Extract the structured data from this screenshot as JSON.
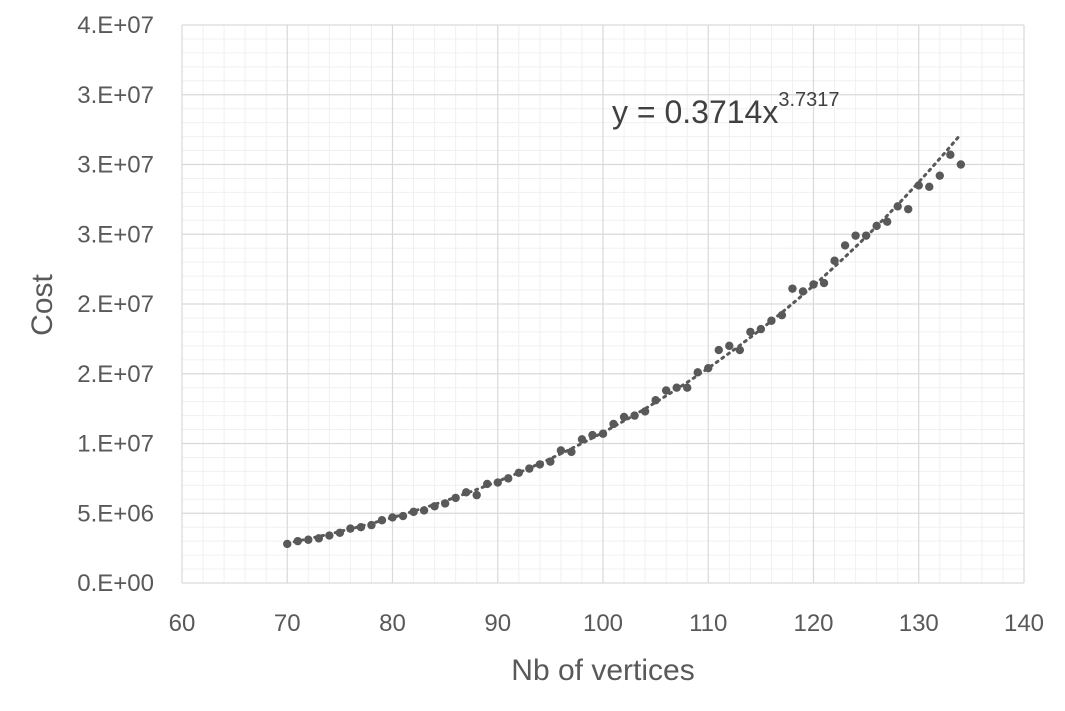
{
  "chart_data": {
    "type": "scatter",
    "title": "",
    "xlabel": "Nb of vertices",
    "ylabel": "Cost",
    "xlim": [
      60,
      140
    ],
    "ylim": [
      0,
      40000000
    ],
    "x_ticks": [
      60,
      70,
      80,
      90,
      100,
      110,
      120,
      130,
      140
    ],
    "y_ticks": [
      0,
      5000000,
      10000000,
      15000000,
      20000000,
      25000000,
      30000000,
      35000000,
      40000000
    ],
    "x_tick_labels": [
      "60",
      "70",
      "80",
      "90",
      "100",
      "110",
      "120",
      "130",
      "140"
    ],
    "y_tick_labels": [
      "0.E+00",
      "5.E+06",
      "1.E+07",
      "2.E+07",
      "2.E+07",
      "3.E+07",
      "3.E+07",
      "3.E+07",
      "4.E+07"
    ],
    "grid": true,
    "minor_grid": true,
    "legend": "none",
    "colors": {
      "points": "#595959",
      "trendline": "#595959",
      "major_grid": "#d9d9d9",
      "minor_grid": "#f0f0f0",
      "text": "#595959"
    },
    "series": [
      {
        "x": [
          70,
          71,
          72,
          73,
          74,
          75,
          76,
          77,
          78,
          79,
          80,
          81,
          82,
          83,
          84,
          85,
          86,
          87,
          88,
          89,
          90,
          91,
          92,
          93,
          94,
          95,
          96,
          97,
          98,
          99,
          100,
          101,
          102,
          103,
          104,
          105,
          106,
          107,
          108,
          109,
          110,
          111,
          112,
          113,
          114,
          115,
          116,
          117,
          118,
          119,
          120,
          121,
          122,
          123,
          124,
          125,
          126,
          127,
          128,
          129,
          130,
          131,
          132,
          133,
          134
        ],
        "y": [
          2800000,
          3000000,
          3100000,
          3200000,
          3400000,
          3600000,
          3900000,
          4000000,
          4150000,
          4500000,
          4700000,
          4800000,
          5100000,
          5200000,
          5500000,
          5700000,
          6100000,
          6500000,
          6300000,
          7100000,
          7200000,
          7500000,
          7900000,
          8200000,
          8500000,
          8700000,
          9500000,
          9400000,
          10300000,
          10600000,
          10700000,
          11400000,
          11900000,
          12000000,
          12300000,
          13100000,
          13800000,
          14000000,
          14000000,
          15100000,
          15400000,
          16700000,
          17000000,
          16700000,
          18000000,
          18200000,
          18800000,
          19200000,
          21100000,
          20900000,
          21400000,
          21500000,
          23100000,
          24200000,
          24900000,
          24900000,
          25600000,
          25900000,
          27000000,
          26800000,
          28500000,
          28400000,
          29200000,
          30700000,
          30000000
        ]
      }
    ],
    "trendline": {
      "type": "power",
      "a": 0.3714,
      "b": 3.7317,
      "x_range": [
        70,
        134
      ],
      "equation_label": {
        "prefix": "y = 0.3714x",
        "exponent": "3.7317"
      }
    }
  }
}
